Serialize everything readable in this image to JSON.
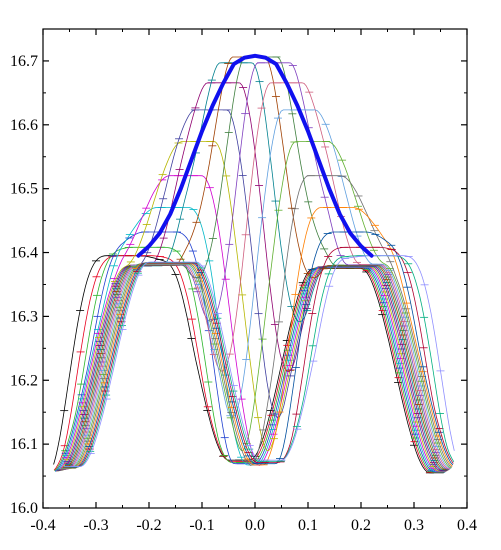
{
  "chart_data": {
    "type": "line",
    "title": "",
    "xlabel": "",
    "ylabel": "",
    "xlim": [
      -0.4,
      0.4
    ],
    "ylim": [
      16.0,
      16.75
    ],
    "x_ticks": [
      -0.4,
      -0.3,
      -0.2,
      -0.1,
      0.0,
      0.1,
      0.2,
      0.3,
      0.4
    ],
    "y_ticks": [
      16.0,
      16.1,
      16.2,
      16.3,
      16.4,
      16.5,
      16.6,
      16.7
    ],
    "x_tick_labels": [
      "-0.4",
      "-0.3",
      "-0.2",
      "-0.1",
      "0.0",
      "0.1",
      "0.2",
      "0.3",
      "0.4"
    ],
    "y_tick_labels": [
      "16.0",
      "16.1",
      "16.2",
      "16.3",
      "16.4",
      "16.5",
      "16.6",
      "16.7"
    ],
    "grid": false,
    "legend": "none",
    "envelope": {
      "color": "#1010ee",
      "x": [
        -0.22,
        -0.2,
        -0.18,
        -0.16,
        -0.14,
        -0.12,
        -0.1,
        -0.08,
        -0.06,
        -0.04,
        -0.02,
        0.0,
        0.02,
        0.04,
        0.06,
        0.08,
        0.1,
        0.12,
        0.14,
        0.16,
        0.18,
        0.2,
        0.22
      ],
      "y": [
        16.395,
        16.41,
        16.43,
        16.46,
        16.5,
        16.545,
        16.59,
        16.63,
        16.665,
        16.695,
        16.705,
        16.708,
        16.705,
        16.695,
        16.665,
        16.63,
        16.59,
        16.545,
        16.5,
        16.46,
        16.43,
        16.41,
        16.395
      ]
    },
    "family": {
      "count": 22,
      "colors": [
        "#000000",
        "#e8001f",
        "#2bb52b",
        "#1f3fd0",
        "#00b7c7",
        "#d100d1",
        "#b6b600",
        "#3f3f9f",
        "#8f006f",
        "#00808f",
        "#9f3f00",
        "#3f7f3f",
        "#7f3fbf",
        "#cf5f7f",
        "#5f9fdf",
        "#5faf2f",
        "#6f6f6f",
        "#ff7f00",
        "#004f9f",
        "#af002f",
        "#00af7f",
        "#8f8fff"
      ],
      "peak_center_range": [
        -0.25,
        0.25
      ],
      "central_min_range": [
        16.055,
        16.075
      ],
      "shoulder_range": [
        16.375,
        16.385
      ],
      "outer_min_range": [
        16.055,
        16.065
      ]
    }
  }
}
